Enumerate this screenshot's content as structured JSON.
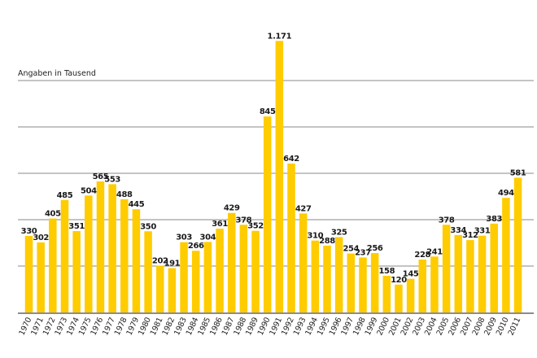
{
  "chart_data": {
    "type": "bar",
    "title": "",
    "note": "Angaben in Tausend",
    "xlabel": "",
    "ylabel": "",
    "ylim": [
      0,
      1200
    ],
    "gridlines": [
      200,
      400,
      600,
      800,
      1000
    ],
    "grid": true,
    "bar_color": "#FFCC00",
    "categories": [
      "1970",
      "1971",
      "1972",
      "1973",
      "1974",
      "1975",
      "1976",
      "1977",
      "1978",
      "1979",
      "1980",
      "1981",
      "1982",
      "1983",
      "1984",
      "1985",
      "1986",
      "1987",
      "1988",
      "1989",
      "1990",
      "1991",
      "1992",
      "1993",
      "1994",
      "1995",
      "1996",
      "1997",
      "1998",
      "1999",
      "2000",
      "2001",
      "2002",
      "2003",
      "2004",
      "2005",
      "2006",
      "2007",
      "2008",
      "2009",
      "2010",
      "2011"
    ],
    "values": [
      330,
      302,
      405,
      485,
      351,
      504,
      565,
      553,
      488,
      445,
      350,
      202,
      191,
      303,
      266,
      304,
      361,
      429,
      378,
      352,
      845,
      1171,
      642,
      427,
      310,
      288,
      325,
      254,
      237,
      256,
      158,
      120,
      145,
      228,
      241,
      378,
      334,
      312,
      331,
      383,
      494,
      581
    ],
    "value_labels": [
      "330",
      "302",
      "405",
      "485",
      "351",
      "504",
      "565",
      "553",
      "488",
      "445",
      "350",
      "202",
      "191",
      "303",
      "266",
      "304",
      "361",
      "429",
      "378",
      "352",
      "845",
      "1.171",
      "642",
      "427",
      "310",
      "288",
      "325",
      "254",
      "237",
      "256",
      "158",
      "120",
      "145",
      "228",
      "241",
      "378",
      "334",
      "312",
      "331",
      "383",
      "494",
      "581"
    ]
  }
}
